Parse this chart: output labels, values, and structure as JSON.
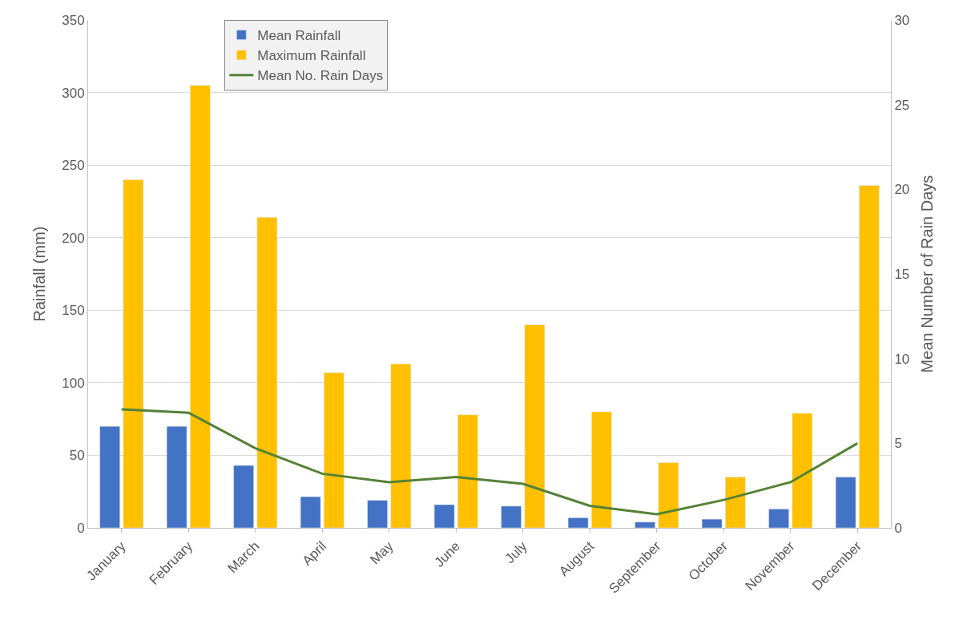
{
  "chart_data": {
    "type": "bar",
    "categories": [
      "January",
      "February",
      "March",
      "April",
      "May",
      "June",
      "July",
      "August",
      "September",
      "October",
      "November",
      "December"
    ],
    "series": [
      {
        "name": "Mean Rainfall",
        "color": "#4472c4",
        "values": [
          70,
          70,
          43,
          21.5,
          19,
          16,
          15,
          7,
          4,
          6,
          13,
          35
        ]
      },
      {
        "name": "Maximum Rainfall",
        "color": "#ffc000",
        "values": [
          240,
          305,
          214,
          107,
          113,
          78,
          140,
          80,
          45,
          35,
          79,
          236
        ]
      },
      {
        "name": "Mean No. Rain Days",
        "color": "#548235",
        "type": "line",
        "axis": "y2",
        "values": [
          7.0,
          6.8,
          4.7,
          3.2,
          2.7,
          3.0,
          2.6,
          1.3,
          0.8,
          1.65,
          2.7,
          5.0
        ]
      }
    ],
    "ylabel": "Rainfall (mm)",
    "y2label": "Mean Number of Rain Days",
    "ylim": [
      0,
      350
    ],
    "yticks": [
      0,
      50,
      100,
      150,
      200,
      250,
      300,
      350
    ],
    "y2lim": [
      0,
      30
    ],
    "y2ticks": [
      0,
      5,
      10,
      15,
      20,
      25,
      30
    ],
    "grid": "y",
    "legend": "top left",
    "marker": "none",
    "line_style": "solid"
  }
}
